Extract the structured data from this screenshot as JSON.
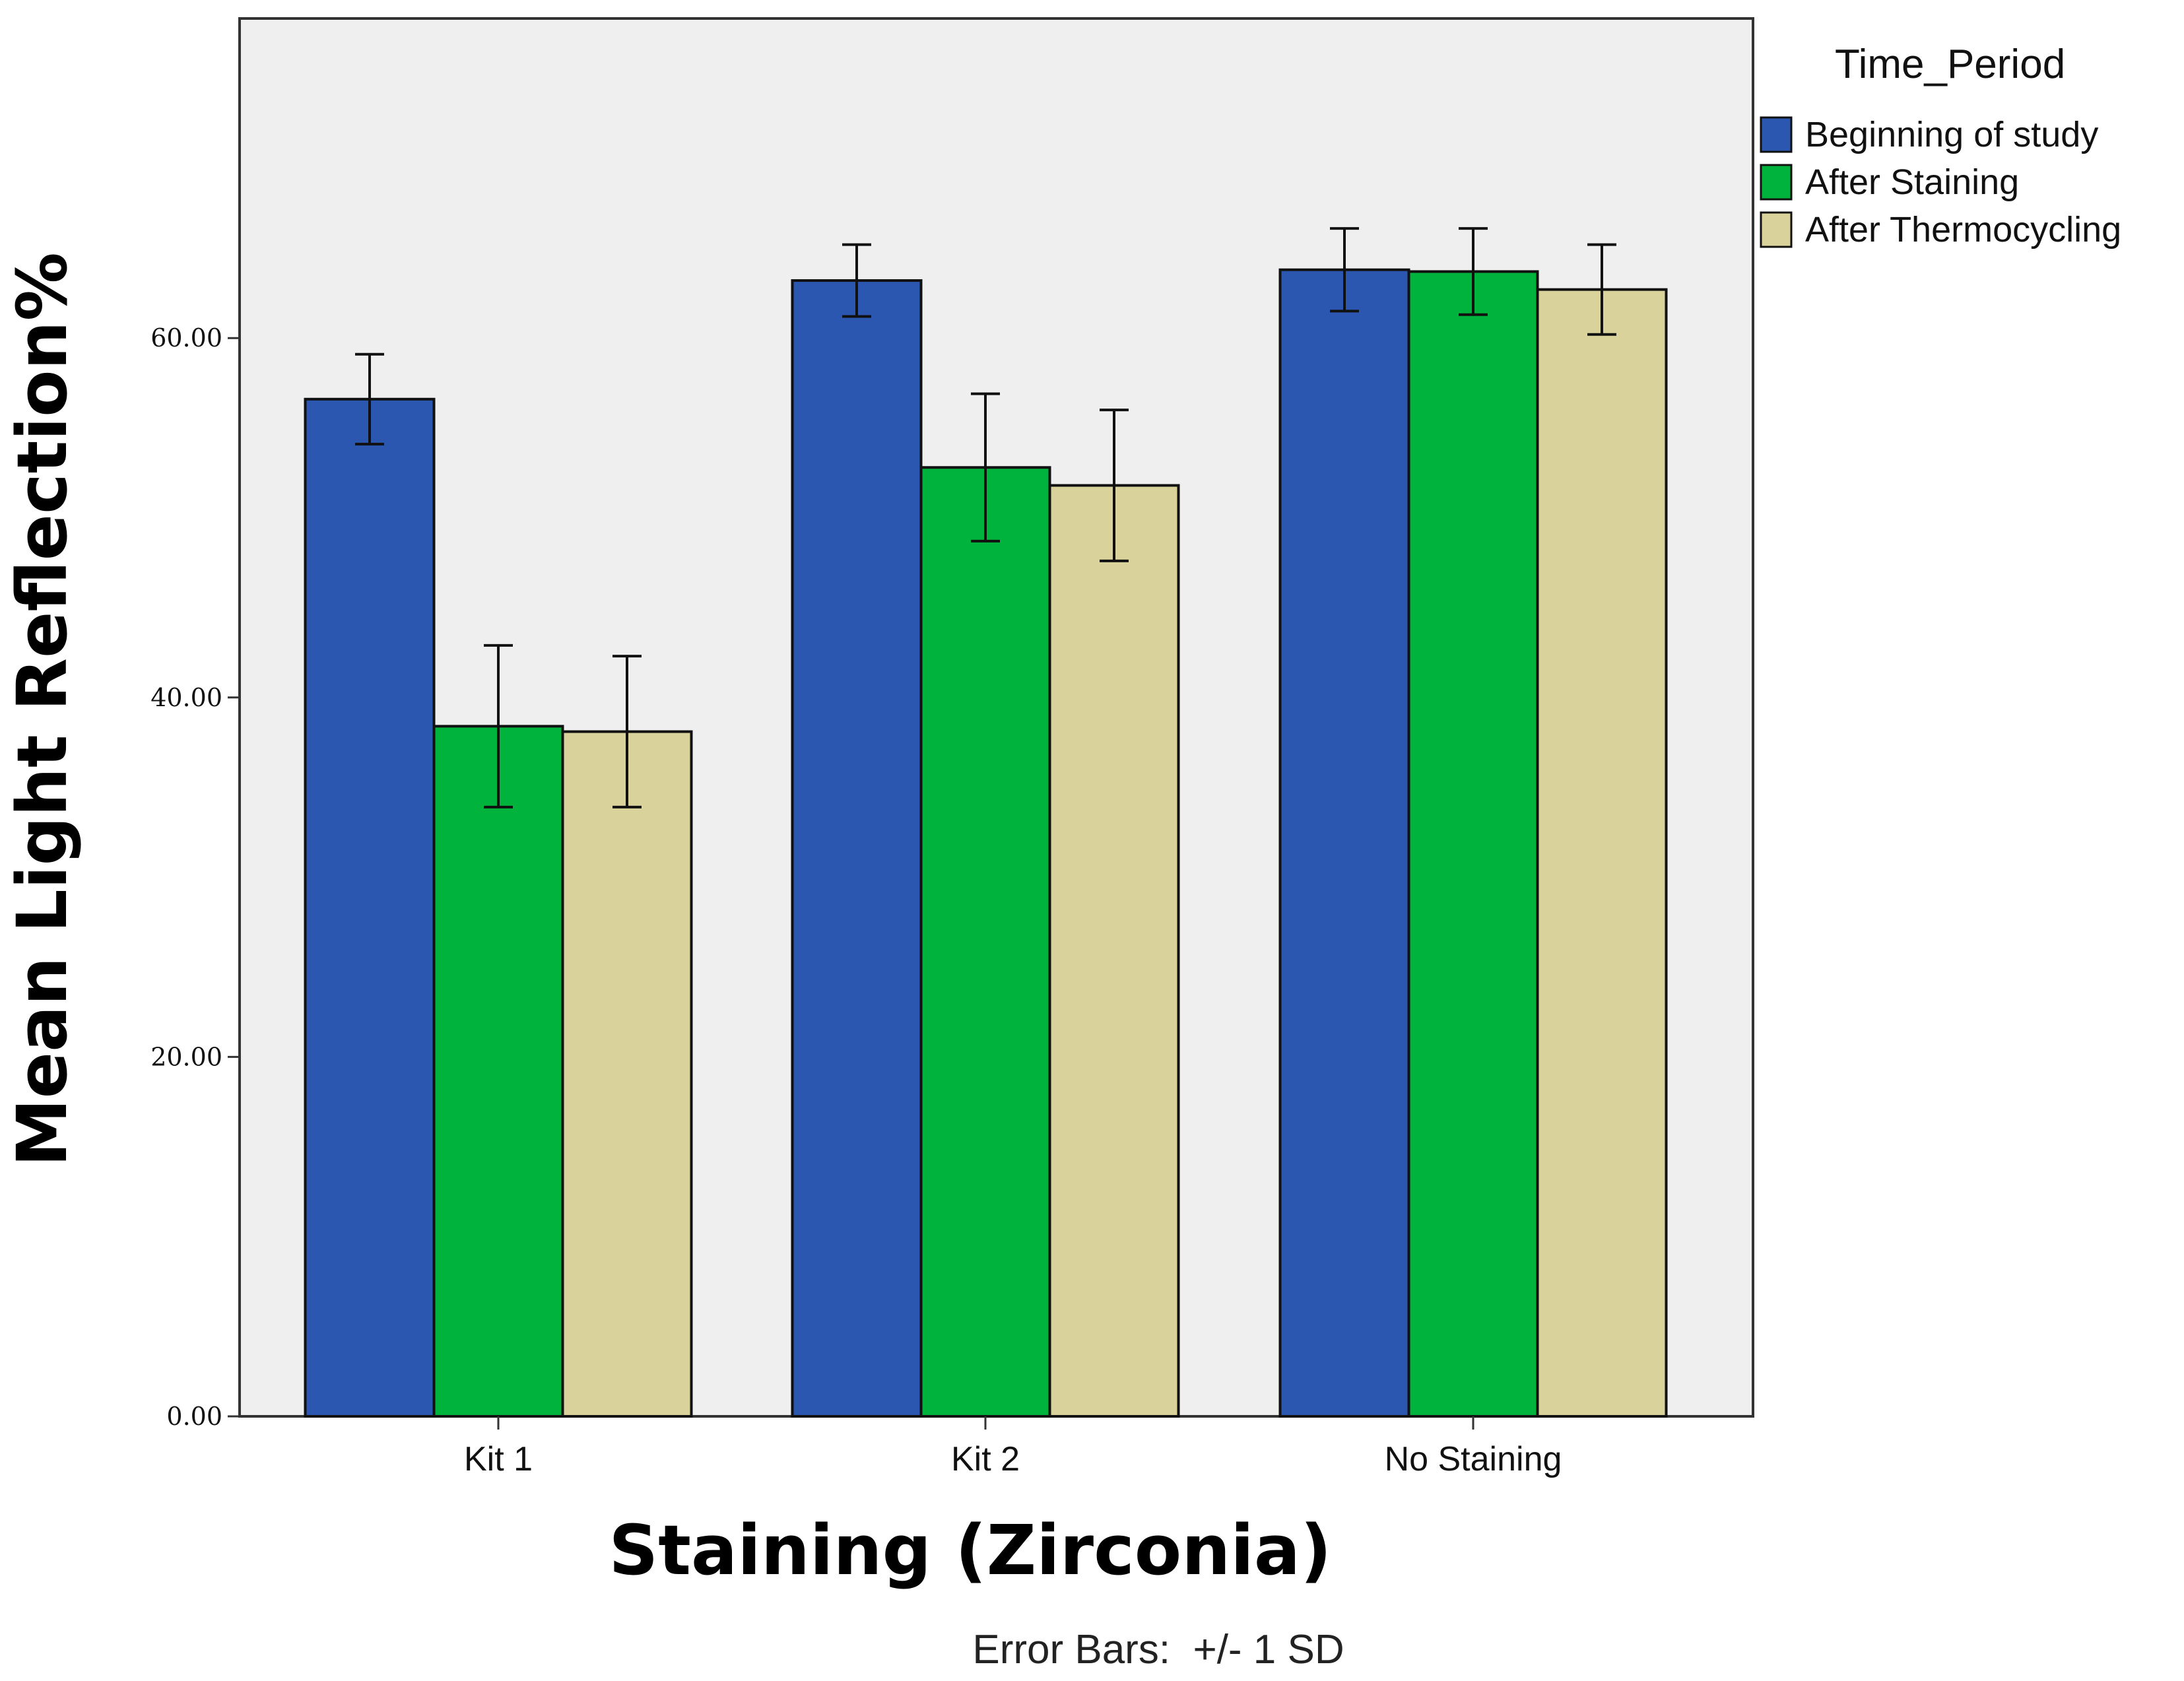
{
  "chart_data": {
    "type": "bar",
    "title": "",
    "xlabel": "Staining (Zirconia)",
    "ylabel": "Mean Light Reflection%",
    "categories": [
      "Kit 1",
      "Kit 2",
      "No Staining"
    ],
    "ylim": [
      0,
      75
    ],
    "yticks": [
      0,
      20,
      40,
      60
    ],
    "ytick_labels": [
      "0.00",
      "20.00",
      "40.00",
      "60.00"
    ],
    "legend_title": "Time_Period",
    "legend_position": "top-right outside plot",
    "series": [
      {
        "name": "Beginning of study",
        "color": "#2c57b0",
        "values": [
          56.6,
          63.2,
          63.8
        ],
        "sd": [
          2.5,
          2.0,
          2.3
        ]
      },
      {
        "name": "After Staining",
        "color": "#00b33c",
        "values": [
          38.4,
          52.8,
          63.7
        ],
        "sd": [
          4.5,
          4.1,
          2.4
        ]
      },
      {
        "name": "After Thermocycling",
        "color": "#d9d29b",
        "values": [
          38.1,
          51.8,
          62.7
        ],
        "sd": [
          4.2,
          4.2,
          2.5
        ]
      }
    ],
    "error_bar_note": "Error Bars:  +/- 1 SD",
    "plot_background": "#efefef",
    "grid": false
  }
}
